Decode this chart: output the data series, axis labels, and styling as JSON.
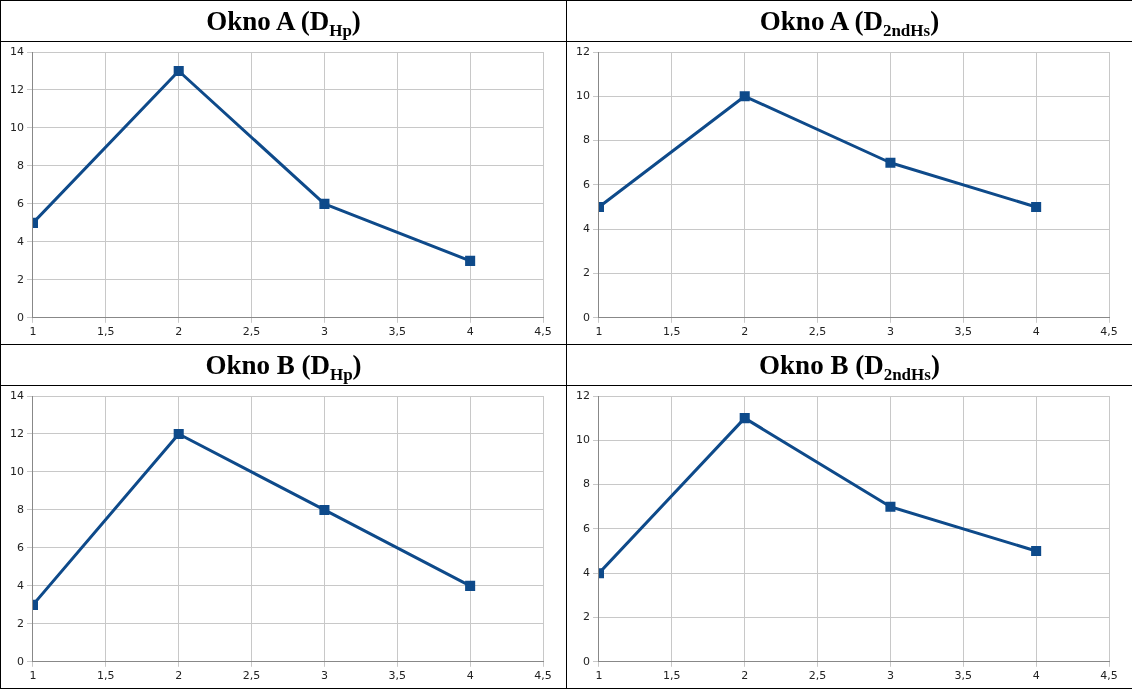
{
  "chart_data": [
    {
      "type": "line",
      "title": "Okno A (D$_{Hp}$)",
      "x": [
        1,
        2,
        3,
        4
      ],
      "series": [
        {
          "color": "#0e4a8a",
          "values": [
            5,
            13,
            6,
            3
          ]
        }
      ],
      "xlim": [
        1,
        4.5
      ],
      "xticks": [
        1,
        {
          "value": 1.5,
          "label": "1,5"
        },
        2,
        {
          "value": 2.5,
          "label": "2,5"
        },
        3,
        {
          "value": 3.5,
          "label": "3,5"
        },
        4,
        {
          "value": 4.5,
          "label": "4,5"
        }
      ],
      "ylim": [
        0,
        14
      ],
      "yticks": [
        0,
        2,
        4,
        6,
        8,
        10,
        12,
        14
      ],
      "grid": true,
      "marker": "square",
      "line_style": "solid"
    },
    {
      "type": "line",
      "title": "Okno A (D$_{2ndHs}$)",
      "x": [
        1,
        2,
        3,
        4
      ],
      "series": [
        {
          "color": "#0e4a8a",
          "values": [
            5,
            10,
            7,
            5
          ]
        }
      ],
      "xlim": [
        1,
        4.5
      ],
      "xticks": [
        1,
        {
          "value": 1.5,
          "label": "1,5"
        },
        2,
        {
          "value": 2.5,
          "label": "2,5"
        },
        3,
        {
          "value": 3.5,
          "label": "3,5"
        },
        4,
        {
          "value": 4.5,
          "label": "4,5"
        }
      ],
      "ylim": [
        0,
        12
      ],
      "yticks": [
        0,
        2,
        4,
        6,
        8,
        10,
        12
      ],
      "grid": true,
      "marker": "square",
      "line_style": "solid"
    },
    {
      "type": "line",
      "title": "Okno B (D$_{Hp}$)",
      "x": [
        1,
        2,
        3,
        4
      ],
      "series": [
        {
          "color": "#0e4a8a",
          "values": [
            3,
            12,
            8,
            4
          ]
        }
      ],
      "xlim": [
        1,
        4.5
      ],
      "xticks": [
        1,
        {
          "value": 1.5,
          "label": "1,5"
        },
        2,
        {
          "value": 2.5,
          "label": "2,5"
        },
        3,
        {
          "value": 3.5,
          "label": "3,5"
        },
        4,
        {
          "value": 4.5,
          "label": "4,5"
        }
      ],
      "ylim": [
        0,
        14
      ],
      "yticks": [
        0,
        2,
        4,
        6,
        8,
        10,
        12,
        14
      ],
      "grid": true,
      "marker": "square",
      "line_style": "solid"
    },
    {
      "type": "line",
      "title": "Okno B (D$_{2ndHs}$)",
      "x": [
        1,
        2,
        3,
        4
      ],
      "series": [
        {
          "color": "#0e4a8a",
          "values": [
            4,
            11,
            7,
            5
          ]
        }
      ],
      "xlim": [
        1,
        4.5
      ],
      "xticks": [
        1,
        {
          "value": 1.5,
          "label": "1,5"
        },
        2,
        {
          "value": 2.5,
          "label": "2,5"
        },
        3,
        {
          "value": 3.5,
          "label": "3,5"
        },
        4,
        {
          "value": 4.5,
          "label": "4,5"
        }
      ],
      "ylim": [
        0,
        12
      ],
      "yticks": [
        0,
        2,
        4,
        6,
        8,
        10,
        12
      ],
      "grid": true,
      "marker": "square",
      "line_style": "solid"
    }
  ]
}
